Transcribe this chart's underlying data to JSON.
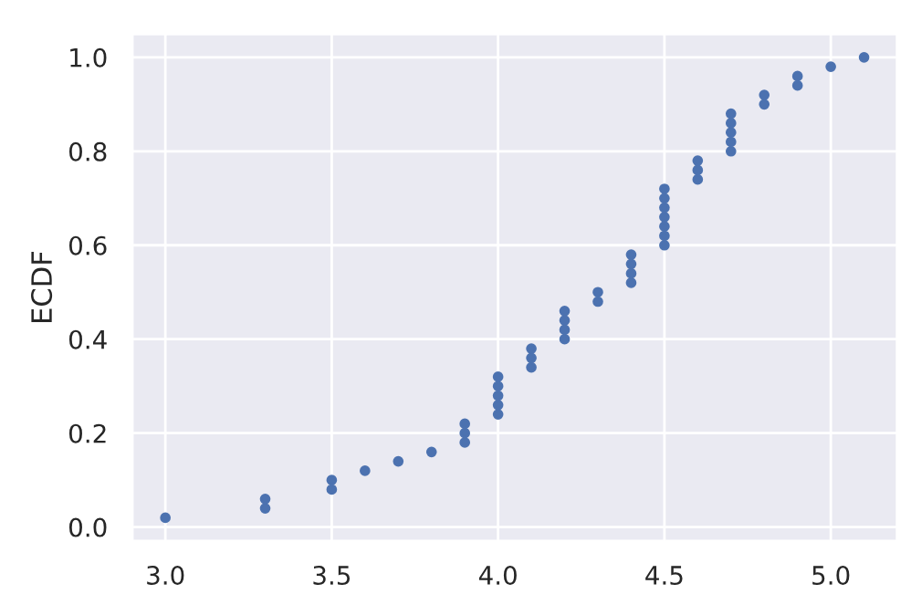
{
  "chart_data": {
    "type": "scatter",
    "ylabel": "ECDF",
    "x": [
      3.0,
      3.3,
      3.3,
      3.5,
      3.5,
      3.6,
      3.7,
      3.8,
      3.9,
      3.9,
      3.9,
      4.0,
      4.0,
      4.0,
      4.0,
      4.0,
      4.1,
      4.1,
      4.1,
      4.2,
      4.2,
      4.2,
      4.2,
      4.3,
      4.3,
      4.4,
      4.4,
      4.4,
      4.4,
      4.5,
      4.5,
      4.5,
      4.5,
      4.5,
      4.5,
      4.5,
      4.6,
      4.6,
      4.6,
      4.7,
      4.7,
      4.7,
      4.7,
      4.7,
      4.8,
      4.8,
      4.9,
      4.9,
      5.0,
      5.1
    ],
    "values": [
      0.02,
      0.04,
      0.06,
      0.08,
      0.1,
      0.12,
      0.14,
      0.16,
      0.18,
      0.2,
      0.22,
      0.24,
      0.26,
      0.28,
      0.3,
      0.32,
      0.34,
      0.36,
      0.38,
      0.4,
      0.42,
      0.44,
      0.46,
      0.48,
      0.5,
      0.52,
      0.54,
      0.56,
      0.58,
      0.6,
      0.62,
      0.64,
      0.66,
      0.68,
      0.7,
      0.72,
      0.74,
      0.76,
      0.78,
      0.8,
      0.82,
      0.84,
      0.86,
      0.88,
      0.9,
      0.92,
      0.94,
      0.96,
      0.98,
      1.0
    ],
    "color": "#4c72b0",
    "marker": "circle",
    "grid": true,
    "legend": false,
    "xlim": [
      2.9,
      5.2
    ],
    "ylim": [
      -0.03,
      1.05
    ],
    "xticks": [
      {
        "value": 3.0,
        "label": "3.0"
      },
      {
        "value": 3.5,
        "label": "3.5"
      },
      {
        "value": 4.0,
        "label": "4.0"
      },
      {
        "value": 4.5,
        "label": "4.5"
      },
      {
        "value": 5.0,
        "label": "5.0"
      }
    ],
    "yticks": [
      {
        "value": 0.0,
        "label": "0.0"
      },
      {
        "value": 0.2,
        "label": "0.2"
      },
      {
        "value": 0.4,
        "label": "0.4"
      },
      {
        "value": 0.6,
        "label": "0.6"
      },
      {
        "value": 0.8,
        "label": "0.8"
      },
      {
        "value": 1.0,
        "label": "1.0"
      }
    ]
  }
}
